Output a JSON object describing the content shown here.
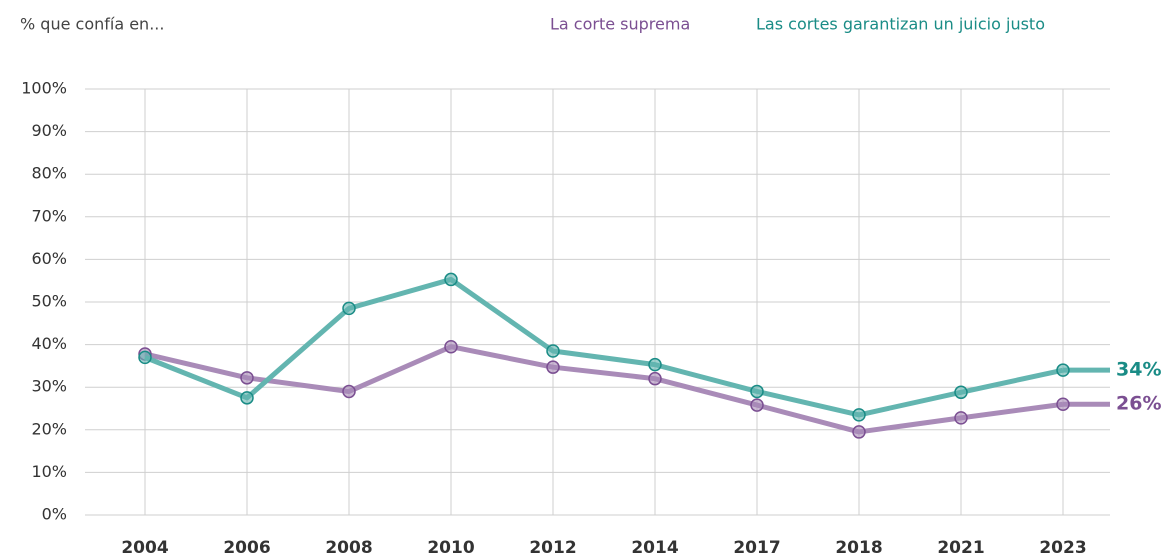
{
  "chart_data": {
    "type": "line",
    "subtitle": "% que confía en...",
    "categories": [
      "2004",
      "2006",
      "2008",
      "2010",
      "2012",
      "2014",
      "2017",
      "2018",
      "2021",
      "2023"
    ],
    "series": [
      {
        "name": "La corte suprema",
        "color": "#a98bb8",
        "label_color": "#7b4f92",
        "values": [
          37.8,
          32.2,
          29,
          39.5,
          34.7,
          32,
          25.8,
          19.5,
          22.8,
          26
        ],
        "value_labels": [
          null,
          null,
          null,
          null,
          null,
          null,
          null,
          null,
          null,
          "26%"
        ]
      },
      {
        "name": "Las cortes garantizan un juicio justo",
        "color": "#63b5b0",
        "label_color": "#1a8c86",
        "values": [
          37,
          27.5,
          48.5,
          55.3,
          38.5,
          35.3,
          29,
          23.5,
          28.8,
          34
        ],
        "value_labels": [
          null,
          null,
          null,
          null,
          null,
          null,
          null,
          null,
          null,
          "34%"
        ]
      }
    ],
    "ylim": [
      0,
      100
    ],
    "yticks": [
      {
        "value": 0,
        "label": "0%"
      },
      {
        "value": 10,
        "label": "10%"
      },
      {
        "value": 20,
        "label": "20%"
      },
      {
        "value": 30,
        "label": "30%"
      },
      {
        "value": 40,
        "label": "40%"
      },
      {
        "value": 50,
        "label": "50%"
      },
      {
        "value": 60,
        "label": "60%"
      },
      {
        "value": 70,
        "label": "70%"
      },
      {
        "value": 80,
        "label": "80%"
      },
      {
        "value": 90,
        "label": "90%"
      },
      {
        "value": 100,
        "label": "100%"
      }
    ],
    "grid": true
  }
}
